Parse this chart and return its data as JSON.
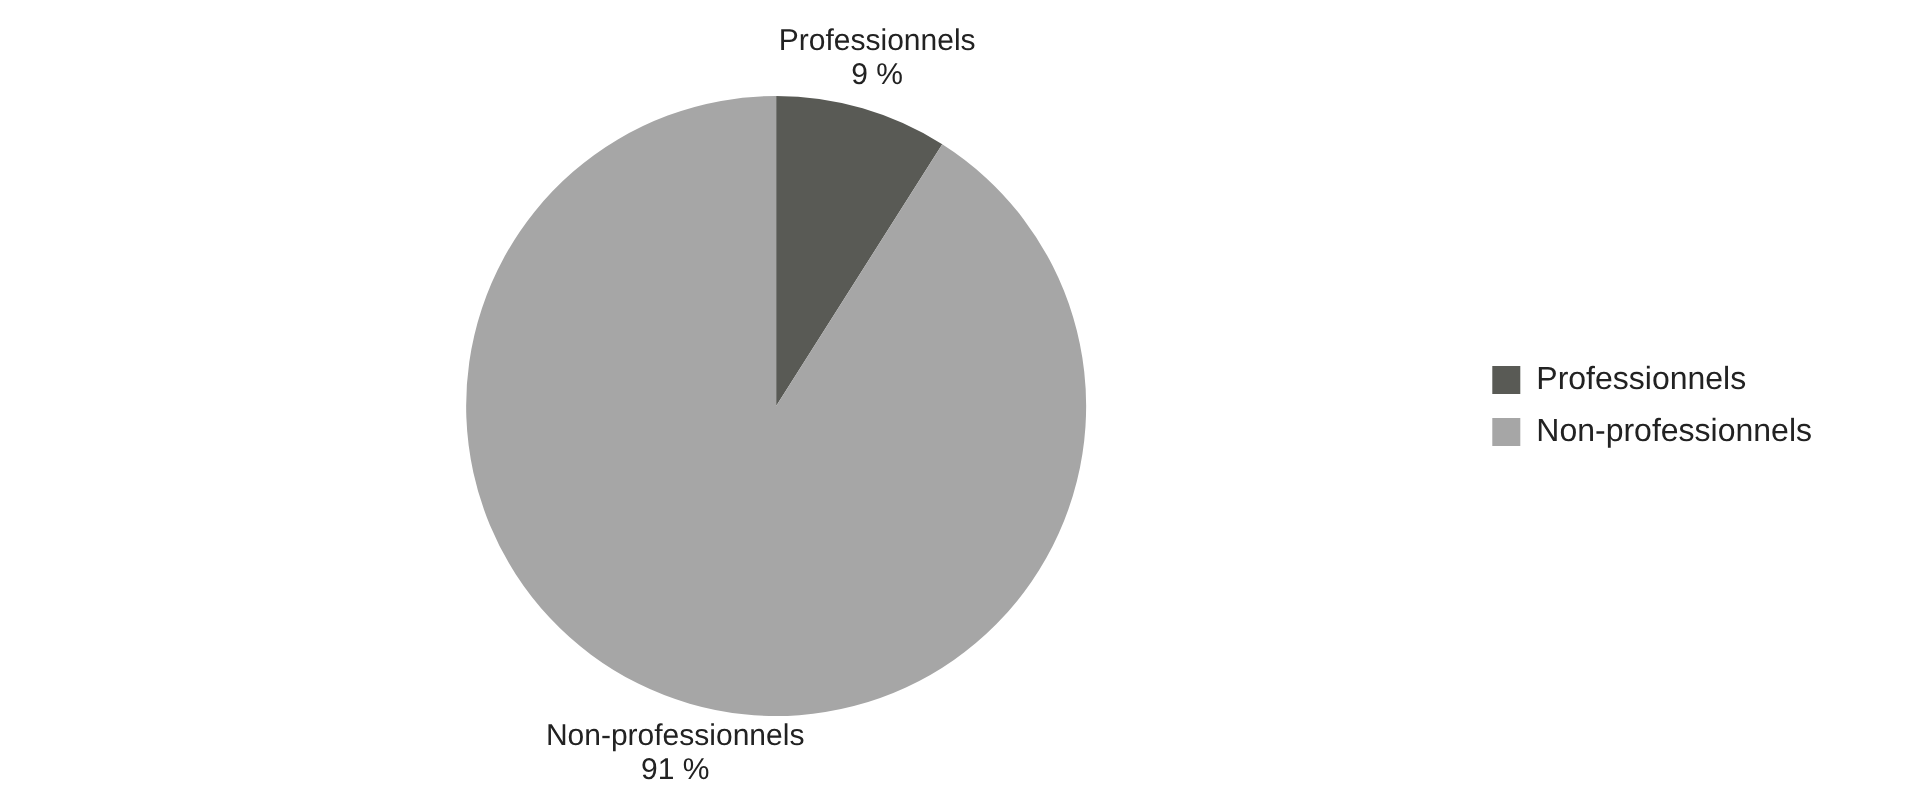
{
  "chart_data": {
    "type": "pie",
    "categories": [
      "Professionnels",
      "Non-professionnels"
    ],
    "values": [
      9,
      91
    ],
    "colors": [
      "#595a55",
      "#a6a6a6"
    ],
    "value_labels": [
      "9 %",
      "91 %"
    ],
    "legend": "right"
  }
}
